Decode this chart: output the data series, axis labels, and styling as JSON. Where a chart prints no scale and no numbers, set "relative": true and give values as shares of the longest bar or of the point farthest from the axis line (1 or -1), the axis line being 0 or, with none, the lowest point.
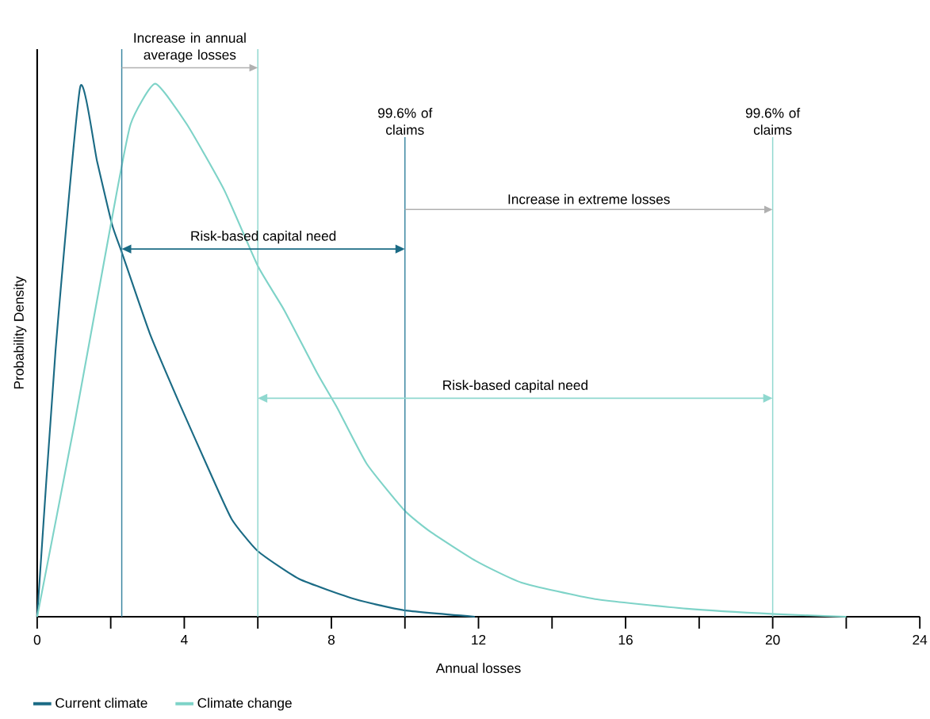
{
  "chart_data": {
    "type": "line",
    "relative": true,
    "xlabel": "Annual losses",
    "ylabel": "Probability Density",
    "xlim": [
      0,
      24
    ],
    "xticks": [
      0,
      {
        "value": 2,
        "label": null
      },
      4,
      {
        "value": 6,
        "label": null
      },
      8,
      {
        "value": 10,
        "label": null
      },
      12,
      {
        "value": 14,
        "label": null
      },
      16,
      {
        "value": 18,
        "label": null
      },
      20,
      {
        "value": 22,
        "label": null
      },
      24
    ],
    "legend": "bottom left",
    "marker": "none",
    "line_style": "solid",
    "grid": false,
    "series": [
      {
        "name": "Current climate",
        "color": "#1b6b85",
        "x": [
          0,
          0.5,
          1.17,
          1.63,
          2.04,
          2.29,
          3.06,
          3.87,
          4.68,
          5.29,
          6.0,
          7.12,
          8.64,
          9.98,
          11.9
        ],
        "values": [
          0,
          0.5,
          0.994,
          0.854,
          0.735,
          0.686,
          0.532,
          0.4,
          0.274,
          0.183,
          0.123,
          0.071,
          0.033,
          0.012,
          0
        ]
      },
      {
        "name": "Climate change",
        "color": "#7ed3c8",
        "x": [
          0,
          1.02,
          2.04,
          2.54,
          3.21,
          4.07,
          5.09,
          6.0,
          6.72,
          7.63,
          8.15,
          8.96,
          9.98,
          10.68,
          11.92,
          13.17,
          15.17,
          17.67,
          20.06,
          22.0
        ],
        "values": [
          0,
          0.364,
          0.75,
          0.924,
          1.0,
          0.924,
          0.8,
          0.658,
          0.575,
          0.455,
          0.393,
          0.287,
          0.2,
          0.16,
          0.105,
          0.064,
          0.033,
          0.015,
          0.005,
          0
        ]
      }
    ],
    "ref_lines": [
      {
        "axis": "x",
        "value": 2.3,
        "color": "#3a86a0"
      },
      {
        "axis": "x",
        "value": 6,
        "color": "#8fd8cf"
      },
      {
        "axis": "x",
        "value": 10,
        "label": "99.6% of claims",
        "color": "#3a86a0"
      },
      {
        "axis": "x",
        "value": 20,
        "label": "99.6% of claims",
        "color": "#8fd8cf"
      }
    ],
    "annotations": [
      "Increase in annual average losses",
      "Increase in extreme losses",
      "Risk-based capital need",
      "Risk-based capital need"
    ]
  }
}
